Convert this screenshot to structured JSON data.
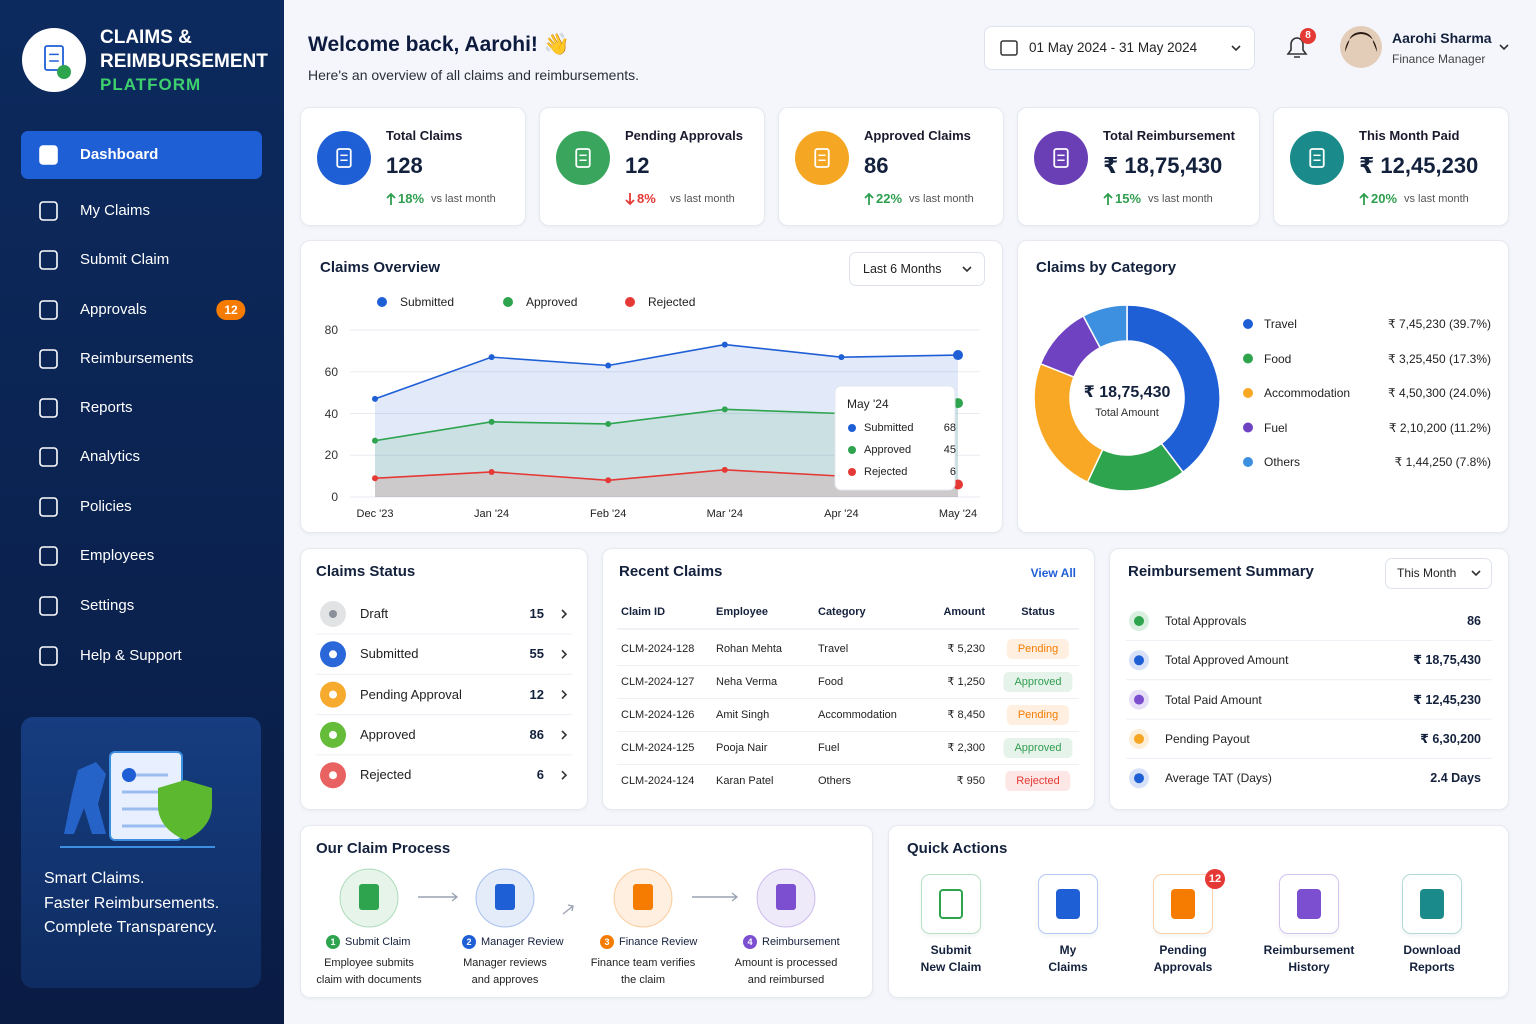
{
  "sidebar": {
    "brand": [
      "CLAIMS &",
      "REIMBURSEMENT",
      "PLATFORM"
    ],
    "nav": [
      {
        "label": "Dashboard",
        "active": true
      },
      {
        "label": "My Claims"
      },
      {
        "label": "Submit Claim"
      },
      {
        "label": "Approvals",
        "badge": 12
      },
      {
        "label": "Reimbursements"
      },
      {
        "label": "Reports"
      },
      {
        "label": "Analytics"
      },
      {
        "label": "Policies"
      },
      {
        "label": "Employees"
      },
      {
        "label": "Settings"
      },
      {
        "label": "Help & Support"
      }
    ],
    "promo": [
      "Smart Claims.",
      "Faster Reimbursements.",
      "Complete Transparency."
    ]
  },
  "header": {
    "greeting": "Welcome back, Aarohi! 👋",
    "subtitle": "Here's an overview of all claims and reimbursements.",
    "date_range": "01 May 2024 - 31 May 2024",
    "notifications": 8,
    "user": {
      "name": "Aarohi Sharma",
      "role": "Finance Manager"
    }
  },
  "kpis": [
    {
      "label": "Total Claims",
      "value": "128",
      "change": "18%",
      "trend": "up",
      "note": "vs last month",
      "color": "#1f5fd6"
    },
    {
      "label": "Pending Approvals",
      "value": "12",
      "change": "8%",
      "trend": "down",
      "note": "vs last month",
      "color": "#3aa55d"
    },
    {
      "label": "Approved Claims",
      "value": "86",
      "change": "22%",
      "trend": "up",
      "note": "vs last month",
      "color": "#f5a623"
    },
    {
      "label": "Total Reimbursement",
      "value": "₹ 18,75,430",
      "change": "15%",
      "trend": "up",
      "note": "vs last month",
      "color": "#6a3fb5"
    },
    {
      "label": "This Month Paid",
      "value": "₹ 12,45,230",
      "change": "20%",
      "trend": "up",
      "note": "vs last month",
      "color": "#1a8a8a"
    }
  ],
  "claims_overview": {
    "type": "line",
    "title": "Claims Overview",
    "period": "Last 6 Months",
    "categories": [
      "Dec '23",
      "Jan '24",
      "Feb '24",
      "Mar '24",
      "Apr '24",
      "May '24"
    ],
    "series": [
      {
        "name": "Submitted",
        "color": "#1f5fd6",
        "values": [
          47,
          67,
          63,
          73,
          67,
          68
        ]
      },
      {
        "name": "Approved",
        "color": "#2ea44f",
        "values": [
          27,
          36,
          35,
          42,
          40,
          45
        ]
      },
      {
        "name": "Rejected",
        "color": "#e53935",
        "values": [
          9,
          12,
          8,
          13,
          10,
          6
        ]
      }
    ],
    "ylim": [
      0,
      80
    ],
    "yticks": [
      0,
      20,
      40,
      60,
      80
    ],
    "grid": true
  },
  "claims_by_category": {
    "type": "donut",
    "title": "Claims by Category",
    "center_value": "₹ 18,75,430",
    "center_label": "Total Amount",
    "categories": [
      "Travel",
      "Food",
      "Accommodation",
      "Fuel",
      "Others"
    ],
    "values": [
      39.7,
      17.3,
      24.0,
      11.2,
      7.8
    ],
    "value_labels": [
      "₹ 7,45,230 (39.7%)",
      "₹ 3,25,450 (17.3%)",
      "₹ 4,50,300 (24.0%)",
      "₹ 2,10,200 (11.2%)",
      "₹ 1,44,250 (7.8%)"
    ],
    "colors": [
      "#1f5fd6",
      "#2ea44f",
      "#f9a825",
      "#6f42c1",
      "#3d8fe0"
    ]
  },
  "claims_status": {
    "title": "Claims Status",
    "items": [
      {
        "label": "Draft",
        "count": 15,
        "color": "#8a8f99"
      },
      {
        "label": "Submitted",
        "count": 55,
        "color": "#1f5fd6"
      },
      {
        "label": "Pending Approval",
        "count": 12,
        "color": "#f5a623"
      },
      {
        "label": "Approved",
        "count": 86,
        "color": "#5cb82e"
      },
      {
        "label": "Rejected",
        "count": 6,
        "color": "#e85a5a"
      }
    ]
  },
  "recent_claims": {
    "title": "Recent Claims",
    "link": "View All",
    "columns": [
      "Claim ID",
      "Employee",
      "Category",
      "Amount",
      "Status"
    ],
    "rows": [
      {
        "id": "CLM-2024-128",
        "employee": "Rohan Mehta",
        "category": "Travel",
        "amount": "₹ 5,230",
        "status": "Pending",
        "tone": "#f57c00"
      },
      {
        "id": "CLM-2024-127",
        "employee": "Neha Verma",
        "category": "Food",
        "amount": "₹ 1,250",
        "status": "Approved",
        "tone": "#2e9e4f"
      },
      {
        "id": "CLM-2024-126",
        "employee": "Amit Singh",
        "category": "Accommodation",
        "amount": "₹ 8,450",
        "status": "Pending",
        "tone": "#f57c00"
      },
      {
        "id": "CLM-2024-125",
        "employee": "Pooja Nair",
        "category": "Fuel",
        "amount": "₹ 2,300",
        "status": "Approved",
        "tone": "#2e9e4f"
      },
      {
        "id": "CLM-2024-124",
        "employee": "Karan Patel",
        "category": "Others",
        "amount": "₹ 950",
        "status": "Rejected",
        "tone": "#e53935"
      }
    ]
  },
  "reimbursement_summary": {
    "title": "Reimbursement Summary",
    "period": "This Month",
    "items": [
      {
        "label": "Total Approvals",
        "value": "86",
        "color": "#2ea44f"
      },
      {
        "label": "Total Approved Amount",
        "value": "₹ 18,75,430",
        "color": "#1f5fd6"
      },
      {
        "label": "Total Paid Amount",
        "value": "₹ 12,45,230",
        "color": "#7b4fd0"
      },
      {
        "label": "Pending Payout",
        "value": "₹ 6,30,200",
        "color": "#f5a623"
      },
      {
        "label": "Average TAT (Days)",
        "value": "2.4 Days",
        "color": "#1f5fd6"
      }
    ]
  },
  "claim_process": {
    "title": "Our Claim Process",
    "steps": [
      {
        "step": 1,
        "title": "Submit Claim",
        "text": [
          "Employee submits",
          "claim with documents"
        ],
        "color": "#2ea44f"
      },
      {
        "step": 2,
        "title": "Manager Review",
        "text": [
          "Manager reviews",
          "and approves"
        ],
        "color": "#1f5fd6"
      },
      {
        "step": 3,
        "title": "Finance Review",
        "text": [
          "Finance team verifies",
          "the claim"
        ],
        "color": "#f57c00"
      },
      {
        "step": 4,
        "title": "Reimbursement",
        "text": [
          "Amount is processed",
          "and reimbursed"
        ],
        "color": "#7b4fd0"
      }
    ]
  },
  "quick_actions": {
    "title": "Quick Actions",
    "items": [
      {
        "label": [
          "Submit",
          "New Claim"
        ],
        "color": "#2ea44f"
      },
      {
        "label": [
          "My",
          "Claims"
        ],
        "color": "#1f5fd6"
      },
      {
        "label": [
          "Pending",
          "Approvals"
        ],
        "color": "#f57c00",
        "badge": 12
      },
      {
        "label": [
          "Reimbursement",
          "History"
        ],
        "color": "#7b4fd0"
      },
      {
        "label": [
          "Download",
          "Reports"
        ],
        "color": "#1a8a8a"
      }
    ]
  }
}
